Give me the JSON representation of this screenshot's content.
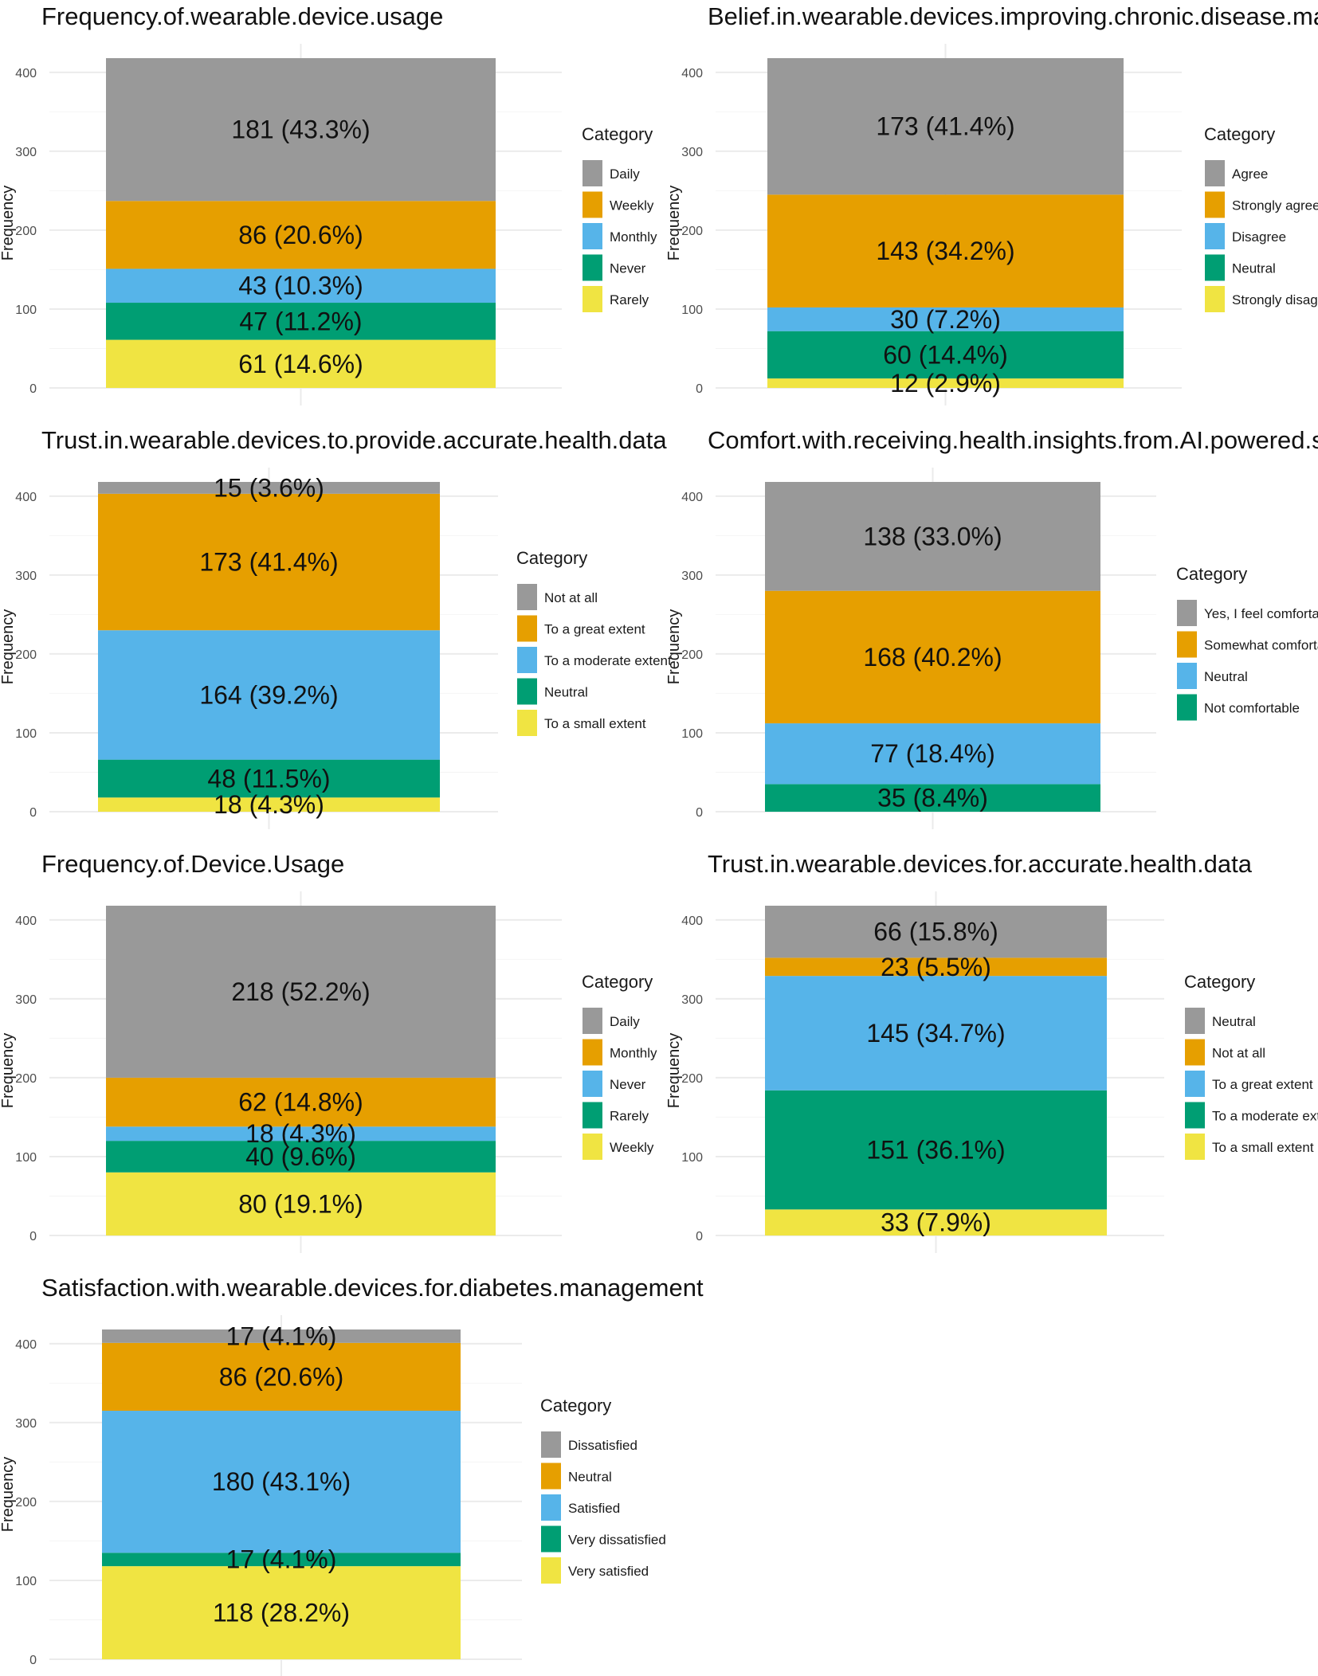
{
  "colors": {
    "palette": [
      "#999999",
      "#E69F00",
      "#56B4E9",
      "#009E73",
      "#F0E442"
    ],
    "grid": "#ebebeb",
    "text": "#111111"
  },
  "shared": {
    "ylabel": "Frequency",
    "legend_title": "Category",
    "y_ticks": [
      0,
      100,
      200,
      300,
      400
    ],
    "ylim": [
      0,
      418
    ]
  },
  "chart_data": [
    {
      "type": "bar",
      "stacked": true,
      "title": "Frequency.of.wearable.device.usage",
      "ylabel": "Frequency",
      "legend_title": "Category",
      "ylim": [
        0,
        418
      ],
      "segments_bottom_to_top": [
        {
          "category": "Rarely",
          "color": "#F0E442",
          "value": 61,
          "label": "61 (14.6%)"
        },
        {
          "category": "Never",
          "color": "#009E73",
          "value": 47,
          "label": "47 (11.2%)"
        },
        {
          "category": "Monthly",
          "color": "#56B4E9",
          "value": 43,
          "label": "43 (10.3%)"
        },
        {
          "category": "Weekly",
          "color": "#E69F00",
          "value": 86,
          "label": "86 (20.6%)"
        },
        {
          "category": "Daily",
          "color": "#999999",
          "value": 181,
          "label": "181 (43.3%)"
        }
      ],
      "legend": [
        {
          "label": "Daily",
          "color": "#999999"
        },
        {
          "label": "Weekly",
          "color": "#E69F00"
        },
        {
          "label": "Monthly",
          "color": "#56B4E9"
        },
        {
          "label": "Never",
          "color": "#009E73"
        },
        {
          "label": "Rarely",
          "color": "#F0E442"
        }
      ]
    },
    {
      "type": "bar",
      "stacked": true,
      "title": "Belief.in.wearable.devices.improving.chronic.disease.management",
      "ylabel": "Frequency",
      "legend_title": "Category",
      "ylim": [
        0,
        418
      ],
      "segments_bottom_to_top": [
        {
          "category": "Strongly disagree",
          "color": "#F0E442",
          "value": 12,
          "label": "12 (2.9%)"
        },
        {
          "category": "Neutral",
          "color": "#009E73",
          "value": 60,
          "label": "60 (14.4%)"
        },
        {
          "category": "Disagree",
          "color": "#56B4E9",
          "value": 30,
          "label": "30 (7.2%)"
        },
        {
          "category": "Strongly agree",
          "color": "#E69F00",
          "value": 143,
          "label": "143 (34.2%)"
        },
        {
          "category": "Agree",
          "color": "#999999",
          "value": 173,
          "label": "173 (41.4%)"
        }
      ],
      "legend": [
        {
          "label": "Agree",
          "color": "#999999"
        },
        {
          "label": "Strongly agree",
          "color": "#E69F00"
        },
        {
          "label": "Disagree",
          "color": "#56B4E9"
        },
        {
          "label": "Neutral",
          "color": "#009E73"
        },
        {
          "label": "Strongly disagree",
          "color": "#F0E442"
        }
      ]
    },
    {
      "type": "bar",
      "stacked": true,
      "title": "Trust.in.wearable.devices.to.provide.accurate.health.data",
      "ylabel": "Frequency",
      "legend_title": "Category",
      "ylim": [
        0,
        418
      ],
      "segments_bottom_to_top": [
        {
          "category": "To a small extent",
          "color": "#F0E442",
          "value": 18,
          "label": "18 (4.3%)"
        },
        {
          "category": "Neutral",
          "color": "#009E73",
          "value": 48,
          "label": "48 (11.5%)"
        },
        {
          "category": "To a moderate extent",
          "color": "#56B4E9",
          "value": 164,
          "label": "164 (39.2%)"
        },
        {
          "category": "To a great extent",
          "color": "#E69F00",
          "value": 173,
          "label": "173 (41.4%)"
        },
        {
          "category": "Not at all",
          "color": "#999999",
          "value": 15,
          "label": "15 (3.6%)"
        }
      ],
      "legend": [
        {
          "label": "Not at all",
          "color": "#999999"
        },
        {
          "label": "To a great extent",
          "color": "#E69F00"
        },
        {
          "label": "To a moderate extent",
          "color": "#56B4E9"
        },
        {
          "label": "Neutral",
          "color": "#009E73"
        },
        {
          "label": "To a small extent",
          "color": "#F0E442"
        }
      ]
    },
    {
      "type": "bar",
      "stacked": true,
      "title": "Comfort.with.receiving.health.insights.from.AI.powered.systems",
      "ylabel": "Frequency",
      "legend_title": "Category",
      "ylim": [
        0,
        418
      ],
      "segments_bottom_to_top": [
        {
          "category": "Not comfortable",
          "color": "#009E73",
          "value": 35,
          "label": "35 (8.4%)"
        },
        {
          "category": "Neutral",
          "color": "#56B4E9",
          "value": 77,
          "label": "77 (18.4%)"
        },
        {
          "category": "Somewhat comfortable",
          "color": "#E69F00",
          "value": 168,
          "label": "168 (40.2%)"
        },
        {
          "category": "Yes, I feel comfortable",
          "color": "#999999",
          "value": 138,
          "label": "138 (33.0%)"
        }
      ],
      "legend": [
        {
          "label": "Yes, I feel comfortable",
          "color": "#999999"
        },
        {
          "label": "Somewhat comfortable",
          "color": "#E69F00"
        },
        {
          "label": "Neutral",
          "color": "#56B4E9"
        },
        {
          "label": "Not comfortable",
          "color": "#009E73"
        }
      ]
    },
    {
      "type": "bar",
      "stacked": true,
      "title": "Frequency.of.Device.Usage",
      "ylabel": "Frequency",
      "legend_title": "Category",
      "ylim": [
        0,
        418
      ],
      "segments_bottom_to_top": [
        {
          "category": "Weekly",
          "color": "#F0E442",
          "value": 80,
          "label": "80 (19.1%)"
        },
        {
          "category": "Rarely",
          "color": "#009E73",
          "value": 40,
          "label": "40 (9.6%)"
        },
        {
          "category": "Never",
          "color": "#56B4E9",
          "value": 18,
          "label": "18 (4.3%)"
        },
        {
          "category": "Monthly",
          "color": "#E69F00",
          "value": 62,
          "label": "62 (14.8%)"
        },
        {
          "category": "Daily",
          "color": "#999999",
          "value": 218,
          "label": "218 (52.2%)"
        }
      ],
      "legend": [
        {
          "label": "Daily",
          "color": "#999999"
        },
        {
          "label": "Monthly",
          "color": "#E69F00"
        },
        {
          "label": "Never",
          "color": "#56B4E9"
        },
        {
          "label": "Rarely",
          "color": "#009E73"
        },
        {
          "label": "Weekly",
          "color": "#F0E442"
        }
      ]
    },
    {
      "type": "bar",
      "stacked": true,
      "title": "Trust.in.wearable.devices.for.accurate.health.data",
      "ylabel": "Frequency",
      "legend_title": "Category",
      "ylim": [
        0,
        418
      ],
      "segments_bottom_to_top": [
        {
          "category": "To a small extent",
          "color": "#F0E442",
          "value": 33,
          "label": "33 (7.9%)"
        },
        {
          "category": "To a moderate extent",
          "color": "#009E73",
          "value": 151,
          "label": "151 (36.1%)"
        },
        {
          "category": "To a great extent",
          "color": "#56B4E9",
          "value": 145,
          "label": "145 (34.7%)"
        },
        {
          "category": "Not at all",
          "color": "#E69F00",
          "value": 23,
          "label": "23 (5.5%)"
        },
        {
          "category": "Neutral",
          "color": "#999999",
          "value": 66,
          "label": "66 (15.8%)"
        }
      ],
      "legend": [
        {
          "label": "Neutral",
          "color": "#999999"
        },
        {
          "label": "Not at all",
          "color": "#E69F00"
        },
        {
          "label": "To a great extent",
          "color": "#56B4E9"
        },
        {
          "label": "To a moderate extent",
          "color": "#009E73"
        },
        {
          "label": "To a small extent",
          "color": "#F0E442"
        }
      ]
    },
    {
      "type": "bar",
      "stacked": true,
      "title": "Satisfaction.with.wearable.devices.for.diabetes.management",
      "ylabel": "Frequency",
      "legend_title": "Category",
      "ylim": [
        0,
        418
      ],
      "segments_bottom_to_top": [
        {
          "category": "Very satisfied",
          "color": "#F0E442",
          "value": 118,
          "label": "118 (28.2%)"
        },
        {
          "category": "Very dissatisfied",
          "color": "#009E73",
          "value": 17,
          "label": "17 (4.1%)"
        },
        {
          "category": "Satisfied",
          "color": "#56B4E9",
          "value": 180,
          "label": "180 (43.1%)"
        },
        {
          "category": "Neutral",
          "color": "#E69F00",
          "value": 86,
          "label": "86 (20.6%)"
        },
        {
          "category": "Dissatisfied",
          "color": "#999999",
          "value": 17,
          "label": "17 (4.1%)"
        }
      ],
      "legend": [
        {
          "label": "Dissatisfied",
          "color": "#999999"
        },
        {
          "label": "Neutral",
          "color": "#E69F00"
        },
        {
          "label": "Satisfied",
          "color": "#56B4E9"
        },
        {
          "label": "Very dissatisfied",
          "color": "#009E73"
        },
        {
          "label": "Very satisfied",
          "color": "#F0E442"
        }
      ]
    }
  ]
}
